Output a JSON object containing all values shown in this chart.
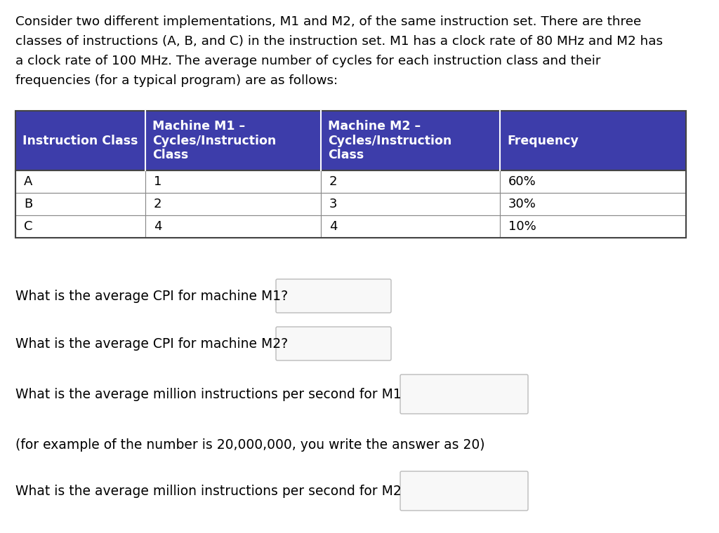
{
  "intro_lines": [
    "Consider two different implementations, M1 and M2, of the same instruction set. There are three",
    "classes of instructions (A, B, and C) in the instruction set. M1 has a clock rate of 80 MHz and M2 has",
    "a clock rate of 100 MHz. The average number of cycles for each instruction class and their",
    "frequencies (for a typical program) are as follows:"
  ],
  "table_header": [
    "Instruction Class",
    "Machine M1 –\nCycles/Instruction\nClass",
    "Machine M2 –\nCycles/Instruction\nClass",
    "Frequency"
  ],
  "table_rows": [
    [
      "A",
      "1",
      "2",
      "60%"
    ],
    [
      "B",
      "2",
      "3",
      "30%"
    ],
    [
      "C",
      "4",
      "4",
      "10%"
    ]
  ],
  "header_bg": "#3D3DAA",
  "header_fg": "#FFFFFF",
  "bg_color": "#FFFFFF",
  "q1_text": "What is the average CPI for machine M1?",
  "q2_text": "What is the average CPI for machine M2?",
  "q3_text": "What is the average million instructions per second for M1",
  "note_text": "(for example of the number is 20,000,000, you write the answer as 20)",
  "q4_text": "What is the average million instructions per second for M2"
}
